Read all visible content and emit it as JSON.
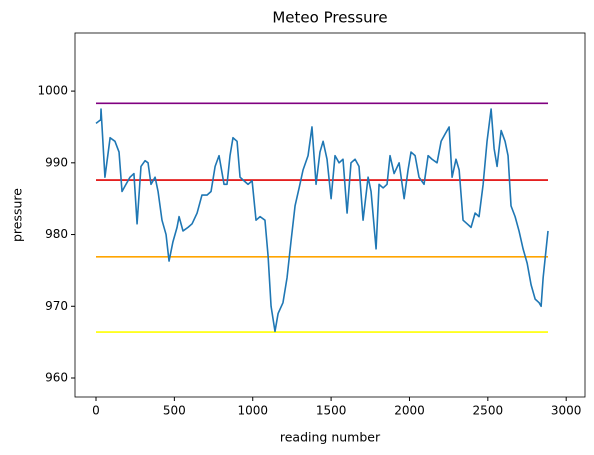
{
  "chart_data": {
    "type": "line",
    "title": "Meteo Pressure",
    "x_label": "reading number",
    "y_label": "pressure",
    "xlim": [
      -134,
      3120
    ],
    "ylim": [
      957.35,
      1008.1
    ],
    "xticks": [
      0,
      500,
      1000,
      1500,
      2000,
      2500,
      3000
    ],
    "yticks": [
      960,
      970,
      980,
      990,
      1000
    ],
    "grid": false,
    "series": [
      {
        "color": "#1f77b4",
        "x": [
          0,
          30,
          32,
          57,
          90,
          121,
          147,
          166,
          191,
          217,
          242,
          262,
          287,
          313,
          332,
          351,
          377,
          396,
          421,
          447,
          466,
          491,
          517,
          530,
          555,
          587,
          613,
          645,
          676,
          708,
          734,
          760,
          785,
          817,
          836,
          855,
          874,
          900,
          919,
          944,
          970,
          996,
          1021,
          1047,
          1078,
          1098,
          1117,
          1142,
          1162,
          1193,
          1219,
          1244,
          1270,
          1296,
          1321,
          1353,
          1378,
          1404,
          1429,
          1449,
          1474,
          1500,
          1525,
          1551,
          1576,
          1602,
          1627,
          1653,
          1678,
          1704,
          1736,
          1755,
          1787,
          1806,
          1832,
          1857,
          1876,
          1902,
          1934,
          1966,
          1991,
          2010,
          2036,
          2061,
          2093,
          2119,
          2144,
          2176,
          2202,
          2227,
          2253,
          2272,
          2297,
          2317,
          2342,
          2368,
          2393,
          2419,
          2444,
          2470,
          2495,
          2521,
          2540,
          2559,
          2585,
          2610,
          2629,
          2648,
          2674,
          2699,
          2725,
          2751,
          2776,
          2802,
          2827,
          2840,
          2853,
          2872,
          2884
        ],
        "values": [
          995.5,
          996,
          997.5,
          988,
          993.5,
          993,
          991.5,
          986,
          987,
          988,
          988.5,
          981.5,
          989.5,
          990.3,
          990,
          987,
          988,
          986,
          982,
          980,
          976.3,
          979,
          981,
          982.5,
          980.5,
          981,
          981.5,
          983,
          985.5,
          985.5,
          986,
          989.5,
          991,
          987,
          987,
          991,
          993.5,
          993,
          988,
          987.5,
          987,
          987.5,
          982,
          982.5,
          982,
          977,
          970,
          966.5,
          969,
          970.5,
          974,
          979,
          984,
          986.5,
          989,
          991,
          995,
          987,
          991.5,
          993,
          990.5,
          985,
          991,
          990,
          990.5,
          983,
          990,
          990.5,
          989.5,
          982,
          988,
          986,
          978,
          987,
          986.5,
          987,
          991,
          988.5,
          990,
          985,
          989,
          991.5,
          991,
          988,
          987,
          991,
          990.5,
          990,
          993,
          994,
          995,
          988,
          990.5,
          989,
          982,
          981.5,
          981,
          983,
          982.5,
          987,
          993,
          997.5,
          992,
          989.5,
          994.5,
          993,
          991,
          984,
          982.5,
          980.5,
          978,
          976,
          973,
          971,
          970.5,
          970,
          974,
          978,
          980.5
        ]
      }
    ],
    "hlines": [
      {
        "y": 998.3,
        "color": "purple",
        "xmin": 0,
        "xmax": 2884
      },
      {
        "y": 987.6,
        "color": "#e00000",
        "xmin": 0,
        "xmax": 2884
      },
      {
        "y": 976.9,
        "color": "orange",
        "xmin": 0,
        "xmax": 2884
      },
      {
        "y": 966.4,
        "color": "yellow",
        "xmin": 0,
        "xmax": 2884
      }
    ]
  }
}
